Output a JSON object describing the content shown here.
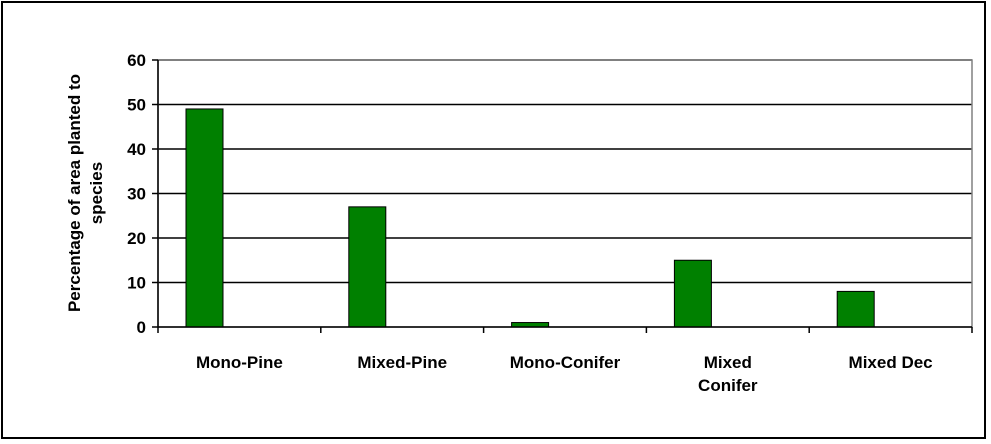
{
  "chart_data": {
    "type": "bar",
    "categories": [
      "Mono-Pine",
      "Mixed-Pine",
      "Mono-Conifer",
      "Mixed Conifer",
      "Mixed Dec"
    ],
    "category_label_lines": [
      [
        "Mono-Pine"
      ],
      [
        "Mixed-Pine"
      ],
      [
        "Mono-Conifer"
      ],
      [
        "Mixed",
        "Conifer"
      ],
      [
        "Mixed Dec"
      ]
    ],
    "values": [
      49,
      27,
      1,
      15,
      8
    ],
    "title": "",
    "xlabel": "",
    "ylabel": "Percentage of area planted to species",
    "ylabel_lines": [
      "Percentage of area planted to",
      "species"
    ],
    "ylim": [
      0,
      60
    ],
    "yticks": [
      0,
      10,
      20,
      30,
      40,
      50,
      60
    ],
    "grid": true,
    "colors": {
      "bar_fill": "#008000",
      "bar_stroke": "#000000",
      "grid": "#000000",
      "plot_border": "#808080"
    }
  }
}
